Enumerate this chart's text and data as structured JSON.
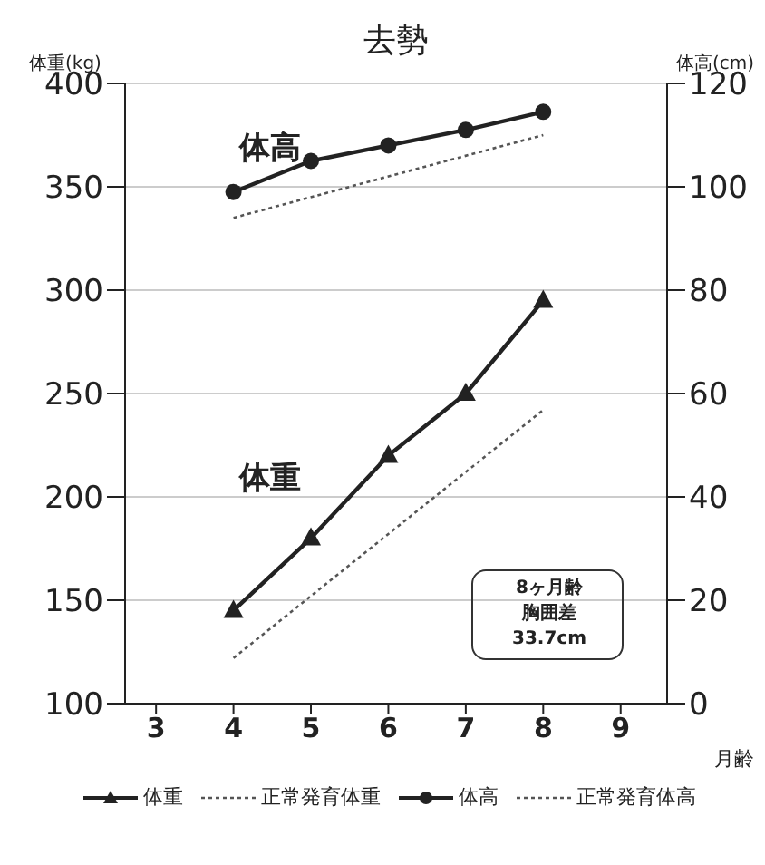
{
  "chart_data": {
    "type": "line",
    "title": "去勢",
    "xlabel": "月齢",
    "ylabel": "体重(kg)",
    "y2label": "体高(cm)",
    "xlim": [
      2.6,
      9.6
    ],
    "xticks": [
      3,
      4,
      5,
      6,
      7,
      8,
      9
    ],
    "ylim": [
      100,
      400
    ],
    "yticks": [
      100,
      150,
      200,
      250,
      300,
      350,
      400
    ],
    "y2lim": [
      0,
      120
    ],
    "y2ticks": [
      0,
      20,
      40,
      60,
      80,
      100,
      120
    ],
    "grid": "y",
    "legend": "bottom",
    "series": [
      {
        "name": "体重",
        "color": "#222222",
        "x": [
          4,
          5,
          6,
          7,
          8
        ],
        "values": [
          145,
          180,
          220,
          250,
          295
        ],
        "marker": "triangle",
        "line_style": "solid"
      },
      {
        "name": "正常発育体重",
        "color": "#555555",
        "x": [
          4,
          8
        ],
        "values": [
          122,
          242
        ],
        "marker": "none",
        "line_style": "dotted"
      },
      {
        "name": "体高",
        "color": "#222222",
        "x": [
          4,
          5,
          6,
          7,
          8
        ],
        "values": [
          99,
          105,
          108,
          111,
          114.5
        ],
        "axis": "y2",
        "marker": "circle",
        "line_style": "solid"
      },
      {
        "name": "正常発育体高",
        "color": "#555555",
        "x": [
          4,
          8
        ],
        "values": [
          94,
          110
        ],
        "axis": "y2",
        "marker": "none",
        "line_style": "dotted"
      }
    ],
    "annotations": [
      "体高",
      "体重",
      "8ヶ月齢",
      "胸囲差",
      "33.7cm"
    ]
  }
}
